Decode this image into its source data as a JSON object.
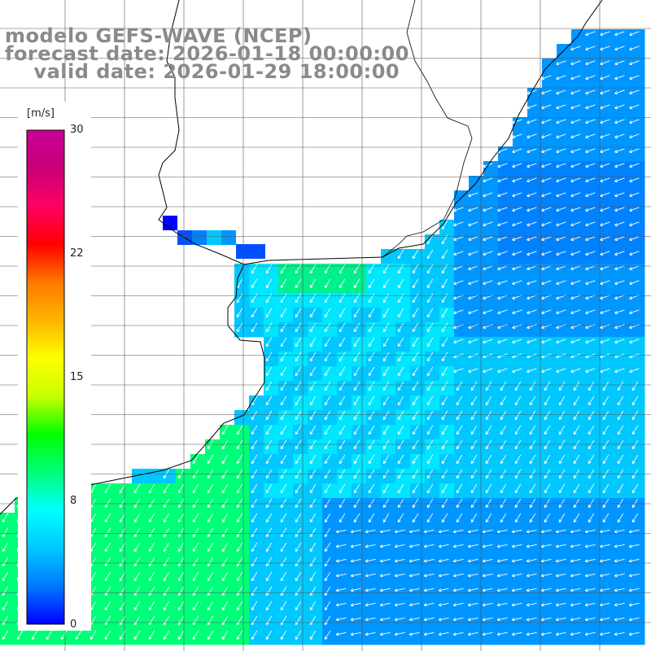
{
  "header": {
    "line1": "modelo GEFS-WAVE (NCEP)",
    "line2": "forecast date: 2026-01-18 00:00:00",
    "line3": "    valid date: 2026-01-29 18:00:00"
  },
  "colorbar": {
    "unit": "[m/s]",
    "ticks": [
      "30",
      "22",
      "15",
      "8",
      "0"
    ],
    "min": 0,
    "max": 30,
    "stops": [
      "#0000ff",
      "#0078ff",
      "#00c8ff",
      "#00ffff",
      "#00ff78",
      "#00ff00",
      "#c8ff00",
      "#ffff00",
      "#ffb400",
      "#ff7800",
      "#ff0000",
      "#ff0064",
      "#c80078",
      "#c80096"
    ]
  },
  "palette": {
    "ocean_low": "#0096ff",
    "ocean_mid": "#00c8ff",
    "ocean_cyan": "#00e6ff",
    "ocean_green": "#00ff78",
    "coast_blue": "#0050ff",
    "deep_blue": "#0000ff",
    "land": "#ffffff",
    "grid": "#555555",
    "coast_line": "#000000",
    "arrow": "#ffffff"
  },
  "map": {
    "type": "wind speed field with direction arrows",
    "units": "m/s"
  }
}
